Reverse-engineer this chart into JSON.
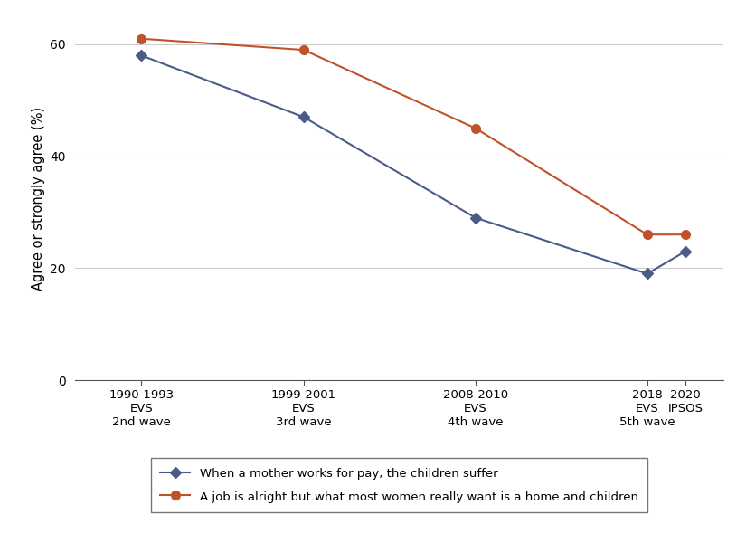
{
  "x_positions": [
    1991.5,
    2000,
    2009,
    2018,
    2020
  ],
  "x_ticks": [
    1991.5,
    2000,
    2009,
    2018,
    2020
  ],
  "x_labels": [
    "1990-1993\nEVS\n2nd wave",
    "1999-2001\nEVS\n3rd wave",
    "2008-2010\nEVS\n4th wave",
    "2018\nEVS\n5th wave",
    "2020\nIPSOS"
  ],
  "blue_values": [
    58,
    47,
    29,
    19,
    23
  ],
  "orange_values": [
    61,
    59,
    45,
    26,
    26
  ],
  "blue_color": "#4a5b8a",
  "orange_color": "#c0522a",
  "ylabel": "Agree or strongly agree (%)",
  "ylim": [
    0,
    65
  ],
  "yticks": [
    0,
    20,
    40,
    60
  ],
  "xlim": [
    1988,
    2022
  ],
  "legend_label_blue": "When a mother works for pay, the children suffer",
  "legend_label_orange": "A job is alright but what most women really want is a home and children",
  "background_color": "#ffffff",
  "grid_color": "#cccccc"
}
